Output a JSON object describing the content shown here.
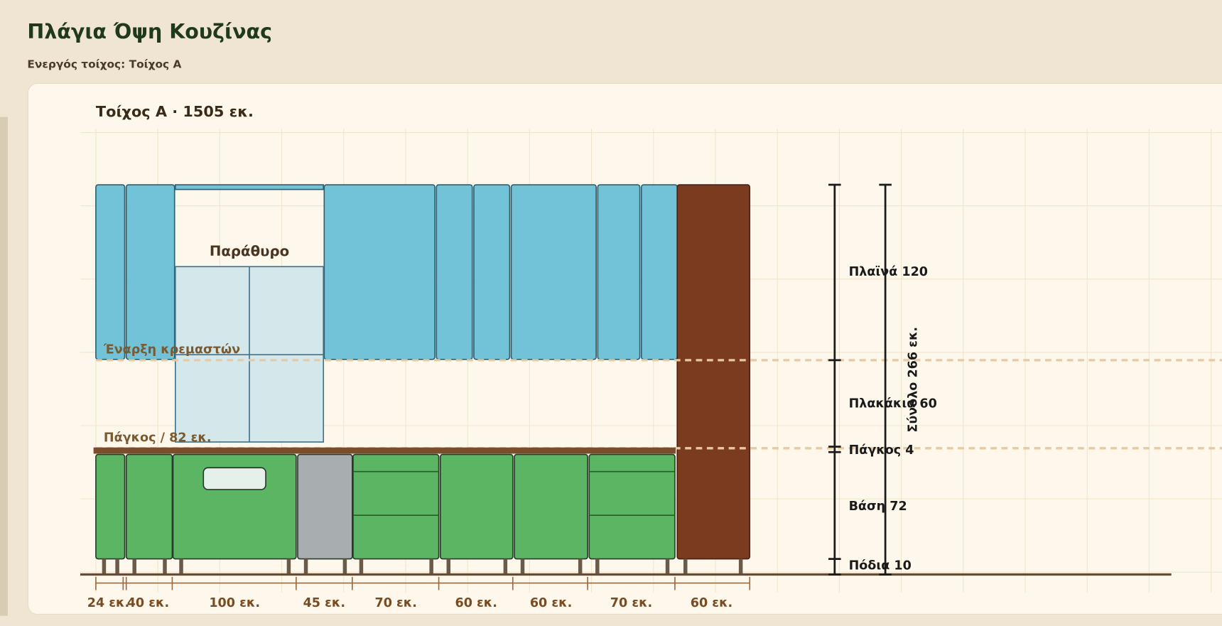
{
  "header": {
    "title": "Πλάγια Όψη Κουζίνας",
    "subtitle": "Ενεργός τοίχος: Τοίχος Α"
  },
  "panel": {
    "title": "Τοίχος Α · 1505 εκ.",
    "window_label": "Παράθυρο",
    "hanging_label": "Έναρξη κρεμαστών",
    "counter_label": "Πάγκος / 82 εκ.",
    "widths": [
      "24 εκ.",
      "40 εκ.",
      "100 εκ.",
      "45 εκ.",
      "70 εκ.",
      "60 εκ.",
      "60 εκ.",
      "70 εκ.",
      "60 εκ."
    ],
    "dimensions": [
      "Πλαϊνά 120",
      "Πλακάκια 60",
      "Πάγκος 4",
      "Βάση 72",
      "Πόδια 10"
    ],
    "total": "Σύνολο 266 εκ."
  }
}
